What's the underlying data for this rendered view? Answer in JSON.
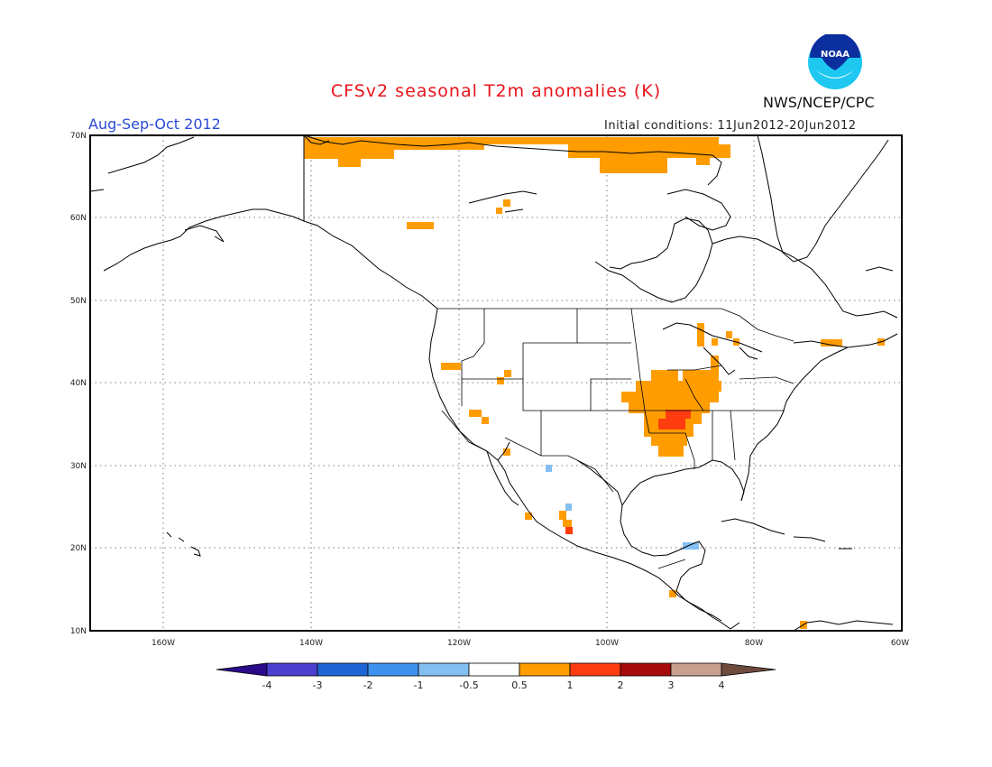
{
  "header": {
    "title": "CFSv2 seasonal T2m anomalies (K)",
    "season": "Aug-Sep-Oct 2012",
    "initial_conditions": "Initial conditions: 11Jun2012-20Jun2012",
    "agency": "NWS/NCEP/CPC",
    "logo_text": "NOAA"
  },
  "axes": {
    "lat_labels": [
      "10N",
      "20N",
      "30N",
      "40N",
      "50N",
      "60N",
      "70N"
    ],
    "lon_labels": [
      "160W",
      "140W",
      "120W",
      "100W",
      "80W",
      "60W"
    ]
  },
  "colorbar": {
    "tick_labels": [
      "-4",
      "-3",
      "-2",
      "-1",
      "-0.5",
      "0.5",
      "1",
      "2",
      "3",
      "4"
    ],
    "colors": {
      "below_-4": "#2b0a8a",
      "-4_-3": "#4b3fcf",
      "-3_-2": "#1f64d6",
      "-2_-1": "#3d92f0",
      "-1_-0.5": "#84bff2",
      "-0.5_0.5": "#ffffff",
      "0.5_1": "#ff9d00",
      "1_2": "#ff3c10",
      "2_3": "#a60a0a",
      "3_4": "#c8a090",
      "above_4": "#6e4a3d"
    }
  }
}
